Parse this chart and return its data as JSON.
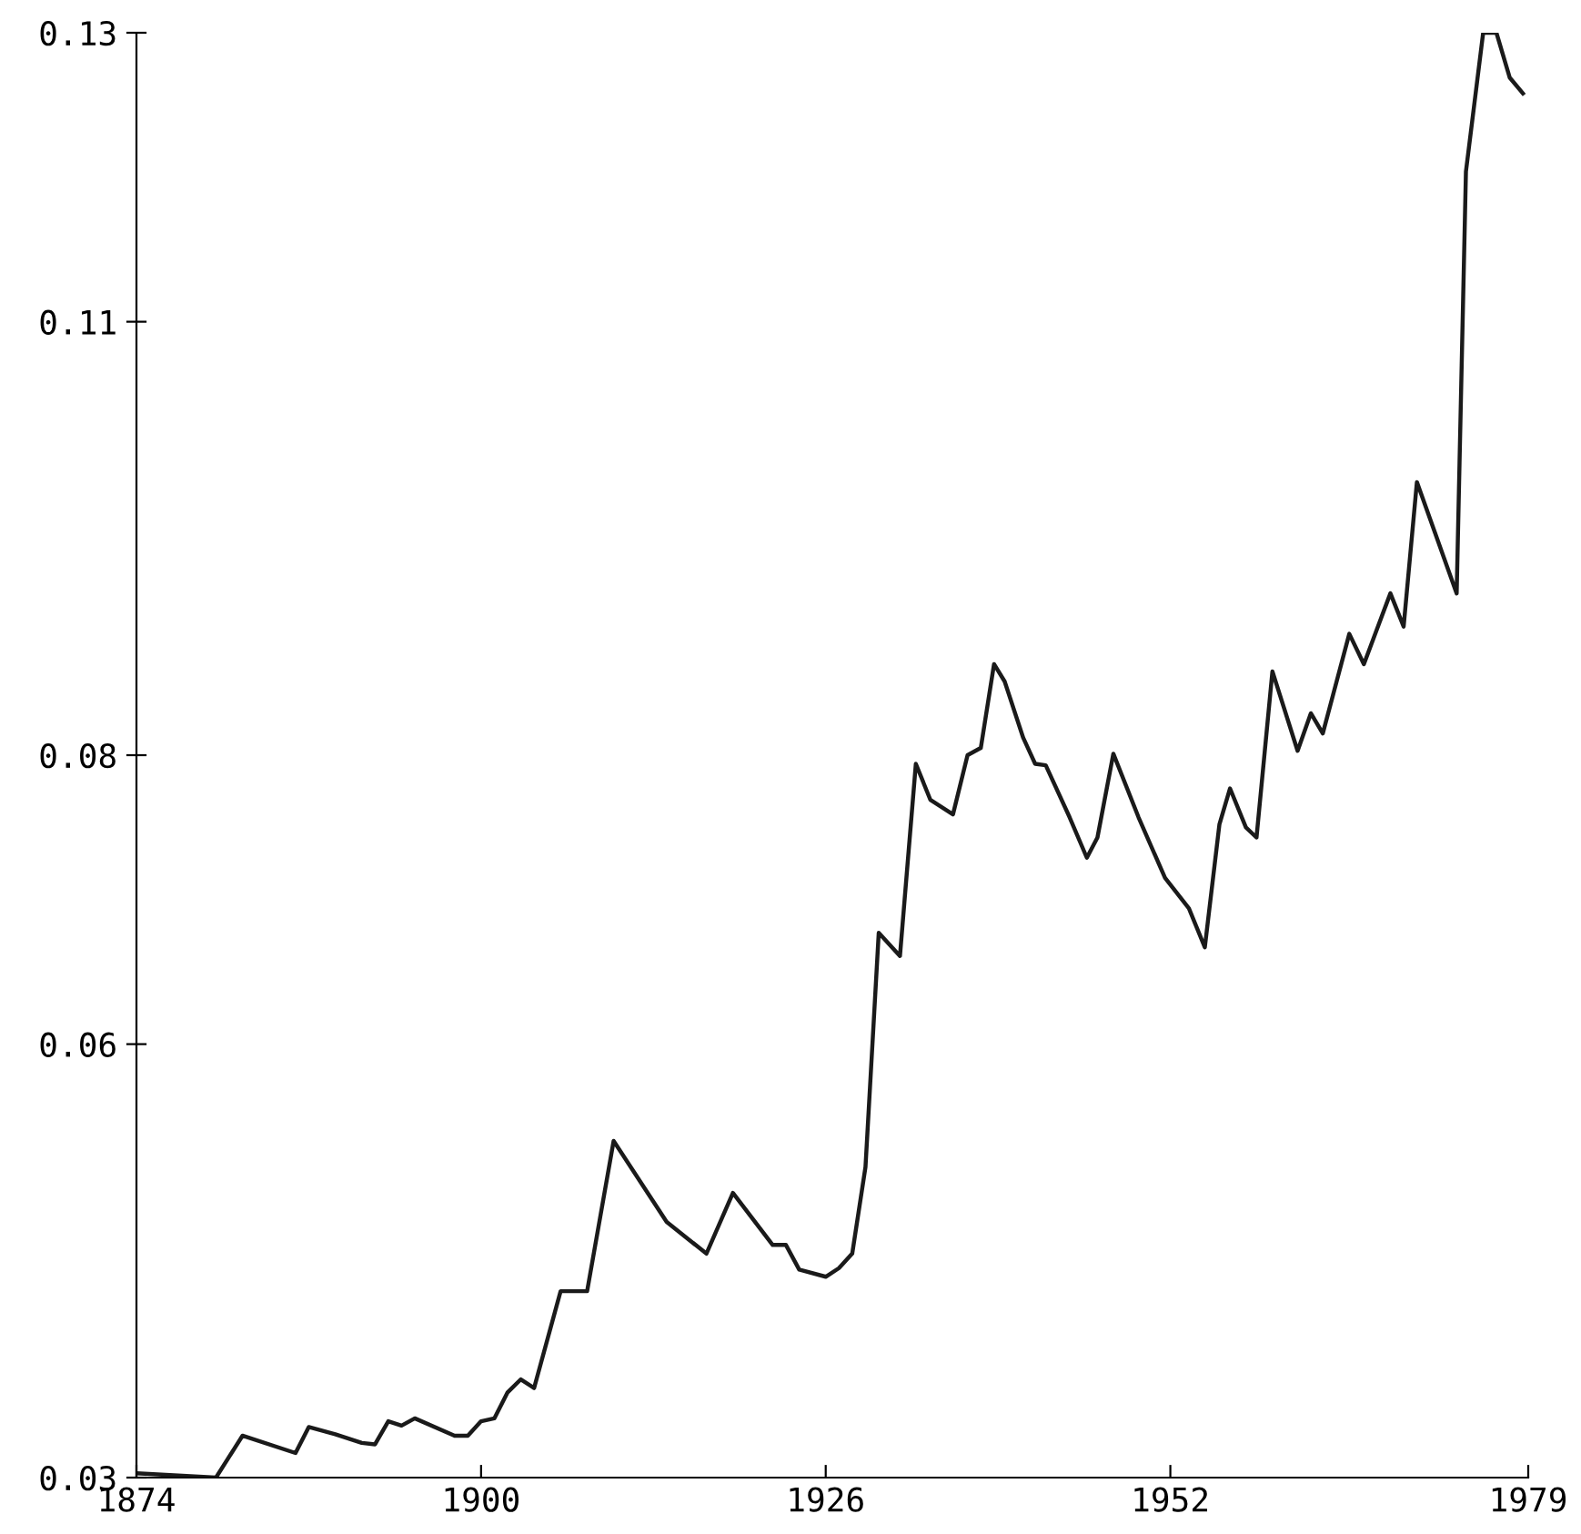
{
  "chart_data": {
    "type": "line",
    "x": [
      1874,
      1880,
      1882,
      1886,
      1887,
      1889,
      1891,
      1892,
      1893,
      1894,
      1895,
      1898,
      1899,
      1900,
      1901,
      1902,
      1903,
      1904,
      1906,
      1908,
      1910,
      1913,
      1914,
      1917,
      1919,
      1922,
      1923,
      1924,
      1926,
      1927,
      1928,
      1929,
      1930,
      1931.6,
      1932.8,
      1933.9,
      1935.6,
      1936.7,
      1937.7,
      1938.7,
      1939.5,
      1940.9,
      1941.8,
      1942.6,
      1944.4,
      1945.7,
      1946.5,
      1947.7,
      1949.6,
      1951.6,
      1953.4,
      1954.6,
      1955.7,
      1956.5,
      1957.7,
      1958.5,
      1959.7,
      1961.6,
      1962.6,
      1963.5,
      1965.5,
      1966.6,
      1968.6,
      1969.6,
      1970.6,
      1973.6,
      1974.3,
      1975.6,
      1976.6,
      1977.6,
      1978.6
    ],
    "series": [
      {
        "color": "#1a1a1a",
        "values": [
          0.0303,
          0.03,
          0.0329,
          0.0317,
          0.0335,
          0.033,
          0.0324,
          0.0323,
          0.0339,
          0.0336,
          0.0341,
          0.0329,
          0.0329,
          0.0339,
          0.0341,
          0.0359,
          0.0368,
          0.0362,
          0.0429,
          0.0429,
          0.0533,
          0.0491,
          0.0477,
          0.0455,
          0.0497,
          0.0461,
          0.0461,
          0.0444,
          0.0439,
          0.0445,
          0.0455,
          0.0515,
          0.0677,
          0.0661,
          0.0794,
          0.0769,
          0.0759,
          0.08,
          0.0805,
          0.0863,
          0.0851,
          0.0812,
          0.0794,
          0.0793,
          0.0757,
          0.0729,
          0.0743,
          0.0801,
          0.0757,
          0.0715,
          0.0694,
          0.0667,
          0.0752,
          0.0777,
          0.075,
          0.0743,
          0.0858,
          0.0803,
          0.0829,
          0.0815,
          0.0884,
          0.0863,
          0.0912,
          0.0889,
          0.0989,
          0.0912,
          0.1204,
          0.13,
          0.13,
          0.1269,
          0.1258
        ]
      }
    ],
    "xlim": [
      1874,
      1979
    ],
    "xticks": [
      1874,
      1900,
      1926,
      1952,
      1979
    ],
    "ylim": [
      0.03,
      0.13
    ],
    "yticks": [
      {
        "value": 0.03,
        "label": "0.03"
      },
      {
        "value": 0.06,
        "label": "0.06"
      },
      {
        "value": 0.08,
        "label": "0.08"
      },
      {
        "value": 0.11,
        "label": "0.11"
      },
      {
        "value": 0.13,
        "label": "0.13"
      }
    ],
    "grid": false,
    "legend": false,
    "marker": "none",
    "line_style": "solid"
  }
}
